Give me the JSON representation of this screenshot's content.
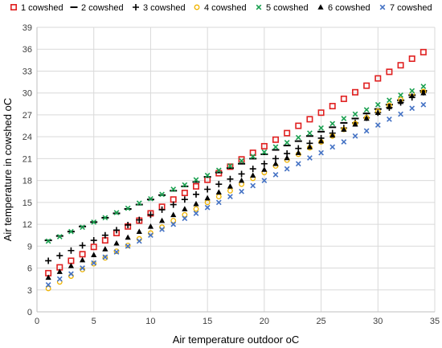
{
  "chart_data": {
    "type": "scatter",
    "title": "",
    "xlabel": "Air temperature outdoor oC",
    "ylabel": "Air temperature in cowshed  oC",
    "xlim": [
      0,
      35
    ],
    "ylim": [
      0,
      39
    ],
    "xticks": [
      0,
      5,
      10,
      15,
      20,
      25,
      30,
      35
    ],
    "yticks": [
      0,
      3,
      6,
      9,
      12,
      15,
      18,
      21,
      24,
      27,
      30,
      33,
      36,
      39
    ],
    "grid": "both",
    "legend_position": "top",
    "x": [
      1,
      2,
      3,
      4,
      5,
      6,
      7,
      8,
      9,
      10,
      11,
      12,
      13,
      14,
      15,
      16,
      17,
      18,
      19,
      20,
      21,
      22,
      23,
      24,
      25,
      26,
      27,
      28,
      29,
      30,
      31,
      32,
      33,
      34
    ],
    "series": [
      {
        "name": "1 cowshed",
        "marker": "square",
        "color": "#e02020",
        "values": [
          5.3,
          6.1,
          7.0,
          7.9,
          8.9,
          9.8,
          10.8,
          11.7,
          12.5,
          13.5,
          14.4,
          15.4,
          16.3,
          17.2,
          18.1,
          19.0,
          19.9,
          20.9,
          21.8,
          22.7,
          23.6,
          24.5,
          25.5,
          26.4,
          27.3,
          28.2,
          29.2,
          30.1,
          31.0,
          32.0,
          32.9,
          33.8,
          34.7,
          35.6
        ]
      },
      {
        "name": "2 cowshed",
        "marker": "dash",
        "color": "#000000",
        "values": [
          9.8,
          10.4,
          11.0,
          11.7,
          12.3,
          12.9,
          13.5,
          14.1,
          14.7,
          15.4,
          16.0,
          16.6,
          17.2,
          17.8,
          18.5,
          19.1,
          19.7,
          20.3,
          21.0,
          21.6,
          22.2,
          22.8,
          23.4,
          24.1,
          24.7,
          25.3,
          25.9,
          26.5,
          27.2,
          27.8,
          28.4,
          29.0,
          29.7,
          30.3
        ]
      },
      {
        "name": "3 cowshed",
        "marker": "plus",
        "color": "#000000",
        "values": [
          7.0,
          7.7,
          8.4,
          9.1,
          9.8,
          10.5,
          11.2,
          11.9,
          12.6,
          13.3,
          14.0,
          14.7,
          15.4,
          16.1,
          16.8,
          17.5,
          18.2,
          18.9,
          19.6,
          20.3,
          21.0,
          21.7,
          22.4,
          23.1,
          23.8,
          24.5,
          25.2,
          25.9,
          26.6,
          27.3,
          28.0,
          28.7,
          29.4,
          30.1
        ]
      },
      {
        "name": "4 cowshed",
        "marker": "circle",
        "color": "#f0b400",
        "values": [
          3.2,
          4.1,
          4.9,
          5.8,
          6.6,
          7.4,
          8.3,
          9.1,
          10.0,
          10.8,
          11.6,
          12.5,
          13.3,
          14.1,
          15.0,
          15.8,
          16.6,
          17.5,
          18.3,
          19.1,
          20.0,
          20.8,
          21.6,
          22.5,
          23.3,
          24.1,
          25.0,
          25.8,
          26.6,
          27.5,
          28.3,
          29.1,
          29.9,
          30.2
        ]
      },
      {
        "name": "5 cowshed",
        "marker": "x",
        "color": "#1aa050",
        "values": [
          9.7,
          10.3,
          11.0,
          11.6,
          12.3,
          12.9,
          13.6,
          14.2,
          14.9,
          15.5,
          16.1,
          16.8,
          17.4,
          18.1,
          18.7,
          19.4,
          20.0,
          20.7,
          21.3,
          21.9,
          22.6,
          23.2,
          23.9,
          24.5,
          25.2,
          25.8,
          26.5,
          27.1,
          27.7,
          28.4,
          29.0,
          29.7,
          30.3,
          30.9
        ]
      },
      {
        "name": "6 cowshed",
        "marker": "triangle",
        "color": "#000000",
        "values": [
          4.7,
          5.5,
          6.3,
          7.1,
          7.8,
          8.6,
          9.4,
          10.2,
          11.0,
          11.7,
          12.5,
          13.3,
          14.1,
          14.8,
          15.6,
          16.4,
          17.2,
          18.0,
          18.7,
          19.5,
          20.3,
          21.1,
          21.8,
          22.6,
          23.4,
          24.2,
          25.0,
          25.7,
          26.5,
          27.3,
          28.1,
          28.8,
          29.6,
          30.0
        ]
      },
      {
        "name": "7 cowshed",
        "marker": "x",
        "color": "#4472c4",
        "values": [
          3.7,
          4.5,
          5.2,
          6.0,
          6.7,
          7.5,
          8.2,
          9.0,
          9.7,
          10.5,
          11.3,
          12.0,
          12.8,
          13.5,
          14.3,
          15.0,
          15.8,
          16.5,
          17.3,
          18.0,
          18.8,
          19.6,
          20.3,
          21.1,
          21.8,
          22.6,
          23.3,
          24.1,
          24.8,
          25.6,
          26.4,
          27.1,
          27.9,
          28.4
        ]
      }
    ]
  }
}
